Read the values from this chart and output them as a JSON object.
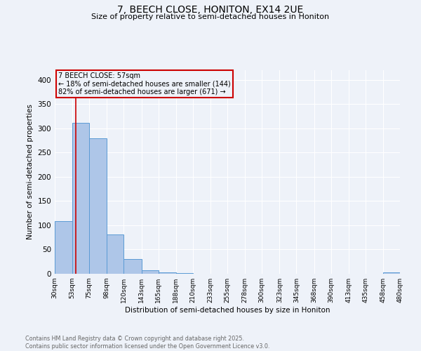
{
  "title_line1": "7, BEECH CLOSE, HONITON, EX14 2UE",
  "title_line2": "Size of property relative to semi-detached houses in Honiton",
  "xlabel": "Distribution of semi-detached houses by size in Honiton",
  "ylabel": "Number of semi-detached properties",
  "bar_edges": [
    30,
    53,
    75,
    98,
    120,
    143,
    165,
    188,
    210,
    233,
    255,
    278,
    300,
    323,
    345,
    368,
    390,
    413,
    435,
    458,
    480
  ],
  "bar_heights": [
    108,
    312,
    280,
    81,
    30,
    7,
    3,
    2,
    0,
    0,
    0,
    0,
    0,
    0,
    0,
    0,
    0,
    0,
    0,
    3
  ],
  "bar_color": "#aec6e8",
  "bar_edge_color": "#5b9bd5",
  "vline_x": 57,
  "vline_color": "#cc0000",
  "annotation_title": "7 BEECH CLOSE: 57sqm",
  "annotation_line2": "← 18% of semi-detached houses are smaller (144)",
  "annotation_line3": "82% of semi-detached houses are larger (671) →",
  "annotation_box_color": "#cc0000",
  "ylim": [
    0,
    420
  ],
  "yticks": [
    0,
    50,
    100,
    150,
    200,
    250,
    300,
    350,
    400
  ],
  "tick_labels": [
    "30sqm",
    "53sqm",
    "75sqm",
    "98sqm",
    "120sqm",
    "143sqm",
    "165sqm",
    "188sqm",
    "210sqm",
    "233sqm",
    "255sqm",
    "278sqm",
    "300sqm",
    "323sqm",
    "345sqm",
    "368sqm",
    "390sqm",
    "413sqm",
    "435sqm",
    "458sqm",
    "480sqm"
  ],
  "footer_line1": "Contains HM Land Registry data © Crown copyright and database right 2025.",
  "footer_line2": "Contains public sector information licensed under the Open Government Licence v3.0.",
  "background_color": "#eef2f9",
  "grid_color": "#ffffff"
}
